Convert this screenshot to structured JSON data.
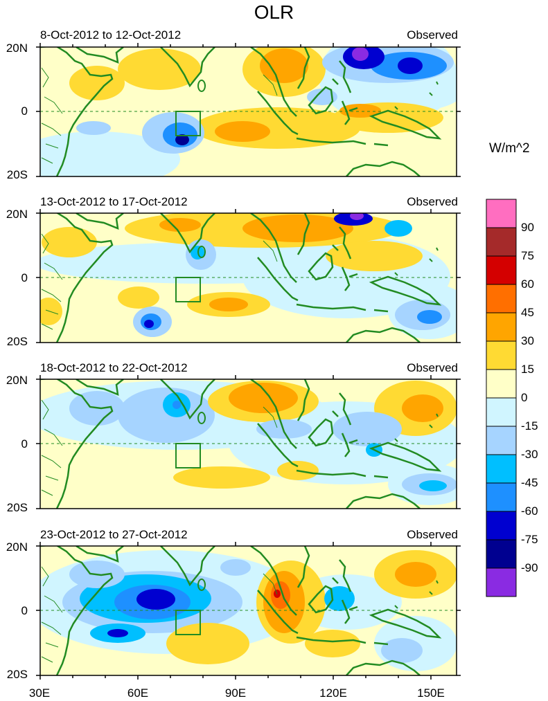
{
  "title": "OLR",
  "panels": [
    {
      "date": "8-Oct-2012 to 12-Oct-2012",
      "source": "Observed"
    },
    {
      "date": "13-Oct-2012 to 17-Oct-2012",
      "source": "Observed"
    },
    {
      "date": "18-Oct-2012 to 22-Oct-2012",
      "source": "Observed"
    },
    {
      "date": "23-Oct-2012 to 27-Oct-2012",
      "source": "Observed"
    }
  ],
  "lat_labels": [
    "20N",
    "0",
    "20S"
  ],
  "lon_labels": [
    "30E",
    "60E",
    "90E",
    "120E",
    "150E"
  ],
  "colorbar": {
    "unit": "W/m^2",
    "ticks": [
      "90",
      "75",
      "60",
      "45",
      "30",
      "15",
      "0",
      "-15",
      "-30",
      "-45",
      "-60",
      "-75",
      "-90"
    ],
    "colors": [
      "#ff6ec0",
      "#a52a2a",
      "#d40000",
      "#ff6f00",
      "#ffa500",
      "#ffda33",
      "#ffffc8",
      "#d0f5ff",
      "#a6d4ff",
      "#00bfff",
      "#1e90ff",
      "#0000d0",
      "#000090",
      "#8a2be2"
    ]
  },
  "colors": {
    "land": "#228b22",
    "background": "#ffffc8"
  }
}
